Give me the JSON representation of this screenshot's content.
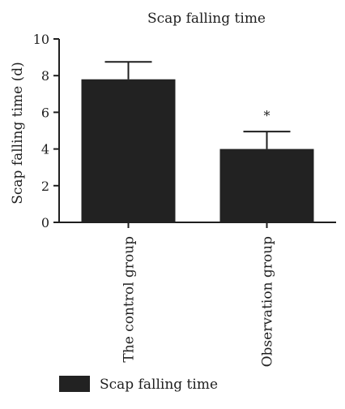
{
  "chart_data": {
    "type": "bar",
    "title": "Scap falling time",
    "ylabel": "Scap falling time (d)",
    "xlabel": "",
    "categories": [
      "The control group",
      "Observation group"
    ],
    "series": [
      {
        "name": "Scap falling time",
        "values": [
          7.8,
          4.0
        ],
        "errors": [
          0.95,
          0.95
        ]
      }
    ],
    "annotations": [
      "",
      "*"
    ],
    "ylim": [
      0,
      10
    ],
    "yticks": [
      "0",
      "2",
      "4",
      "6",
      "8",
      "10"
    ],
    "grid": false,
    "legend_position": "bottom-left",
    "colors": {
      "bar": "#222222",
      "axis": "#1f1f1f",
      "text": "#1f1f1f"
    }
  }
}
